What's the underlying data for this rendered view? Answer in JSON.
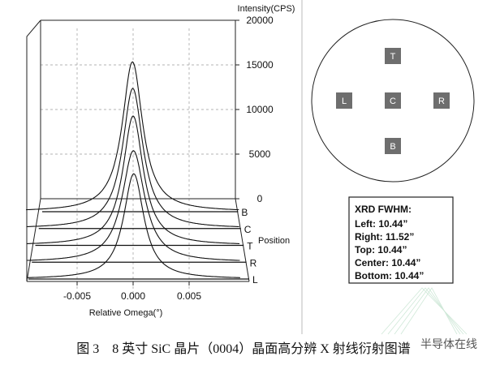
{
  "chart_data": {
    "type": "line",
    "title": "",
    "xlabel": "Relative Omega(°)",
    "ylabel": "Intensity(CPS)",
    "zlabel": "Position",
    "xlim": [
      -0.01,
      0.01
    ],
    "ylim": [
      0,
      20000
    ],
    "xticks": [
      "-0.005",
      "0.000",
      "0.005"
    ],
    "yticks": [
      "0",
      "5000",
      "10000",
      "15000",
      "20000"
    ],
    "grid": true,
    "series": [
      {
        "name": "B",
        "peak": 16800,
        "fwhm_arcsec": 10.44
      },
      {
        "name": "C",
        "peak": 15700,
        "fwhm_arcsec": 10.44
      },
      {
        "name": "T",
        "peak": 14500,
        "fwhm_arcsec": 10.44
      },
      {
        "name": "R",
        "peak": 12500,
        "fwhm_arcsec": 11.52
      },
      {
        "name": "L",
        "peak": 11800,
        "fwhm_arcsec": 10.44
      }
    ]
  },
  "wafer": {
    "points": [
      "T",
      "L",
      "C",
      "R",
      "B"
    ]
  },
  "fwhm_box": {
    "title": "XRD FWHM:",
    "lines": [
      "Left: 10.44”",
      "Right: 11.52”",
      "Top: 10.44”",
      "Center: 10.44”",
      "Bottom: 10.44”"
    ]
  },
  "caption": "图 3　8 英寸 SiC 晶片（0004）晶面高分辨 X 射线衍射图谱",
  "watermark": "半导体在线"
}
